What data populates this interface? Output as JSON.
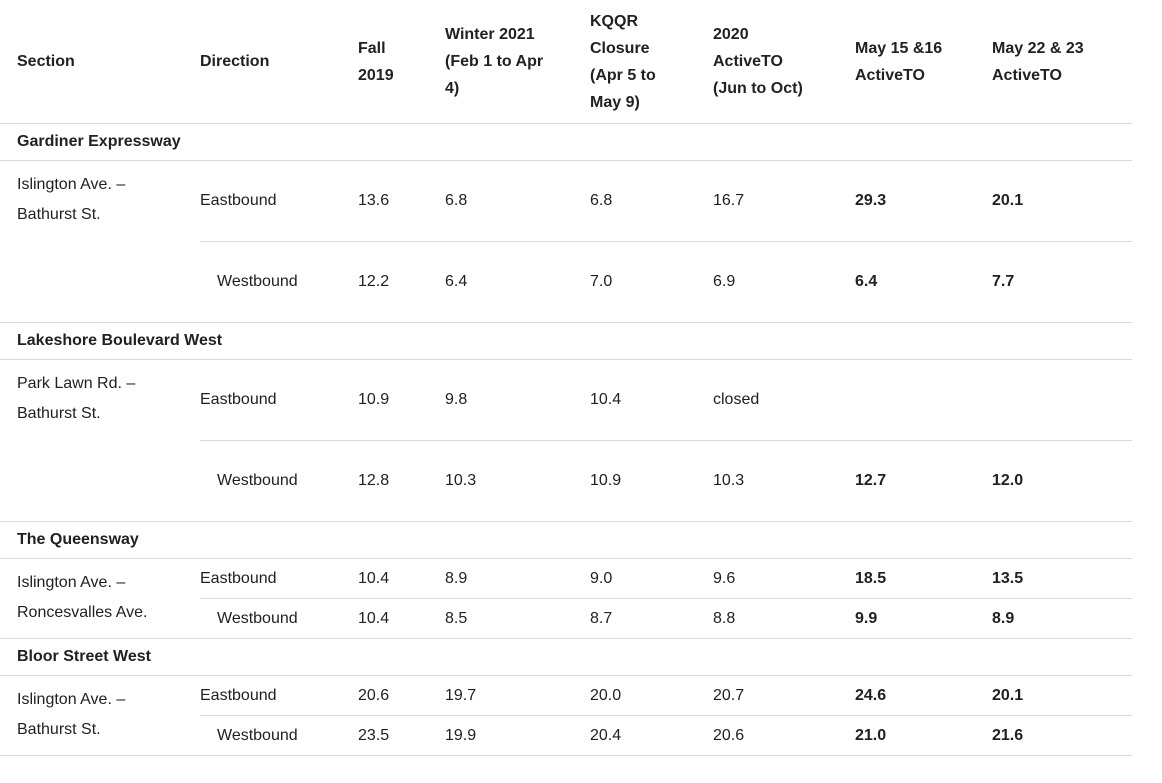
{
  "colors": {
    "text": "#202122",
    "border": "#d9d9d9",
    "background": "#ffffff"
  },
  "table": {
    "columns": [
      {
        "id": "section",
        "label": "Section"
      },
      {
        "id": "direction",
        "label": "Direction"
      },
      {
        "id": "fall-2019",
        "label": "Fall\n2019"
      },
      {
        "id": "winter-2021",
        "label": "Winter 2021\n(Feb 1 to Apr\n4)"
      },
      {
        "id": "kqqr-closure",
        "label": "KQQR\nClosure\n(Apr 5 to\nMay 9)"
      },
      {
        "id": "activeto-2020",
        "label": "2020\nActiveTO\n(Jun to Oct)"
      },
      {
        "id": "may-15-16",
        "label": "May 15 &16\nActiveTO"
      },
      {
        "id": "may-22-23",
        "label": "May 22 & 23\nActiveTO"
      }
    ],
    "emphasized_value_columns": [
      4,
      5
    ],
    "groups": [
      {
        "title": "Gardiner Expressway",
        "row_style": "tall",
        "segments": [
          {
            "section": "Islington Ave. –\nBathurst St.",
            "rows": [
              {
                "direction": "Eastbound",
                "values": [
                  "13.6",
                  "6.8",
                  "6.8",
                  "16.7",
                  "29.3",
                  "20.1"
                ]
              },
              {
                "direction": "Westbound",
                "values": [
                  "12.2",
                  "6.4",
                  "7.0",
                  "6.9",
                  "6.4",
                  "7.7"
                ]
              }
            ]
          }
        ]
      },
      {
        "title": "Lakeshore Boulevard West",
        "row_style": "tall",
        "segments": [
          {
            "section": "Park Lawn Rd. –\nBathurst St.",
            "rows": [
              {
                "direction": "Eastbound",
                "values": [
                  "10.9",
                  "9.8",
                  "10.4",
                  "closed",
                  "",
                  ""
                ]
              },
              {
                "direction": "Westbound",
                "values": [
                  "12.8",
                  "10.3",
                  "10.9",
                  "10.3",
                  "12.7",
                  "12.0"
                ]
              }
            ]
          }
        ]
      },
      {
        "title": "The Queensway",
        "row_style": "compact",
        "segments": [
          {
            "section": "Islington Ave. –\nRoncesvalles Ave.",
            "rows": [
              {
                "direction": "Eastbound",
                "values": [
                  "10.4",
                  "8.9",
                  "9.0",
                  "9.6",
                  "18.5",
                  "13.5"
                ]
              },
              {
                "direction": "Westbound",
                "values": [
                  "10.4",
                  "8.5",
                  "8.7",
                  "8.8",
                  "9.9",
                  "8.9"
                ]
              }
            ]
          }
        ]
      },
      {
        "title": "Bloor Street West",
        "row_style": "compact",
        "segments": [
          {
            "section": "Islington Ave. –\nBathurst St.",
            "rows": [
              {
                "direction": "Eastbound",
                "values": [
                  "20.6",
                  "19.7",
                  "20.0",
                  "20.7",
                  "24.6",
                  "20.1"
                ]
              },
              {
                "direction": "Westbound",
                "values": [
                  "23.5",
                  "19.9",
                  "20.4",
                  "20.6",
                  "21.0",
                  "21.6"
                ]
              }
            ]
          }
        ]
      }
    ]
  }
}
